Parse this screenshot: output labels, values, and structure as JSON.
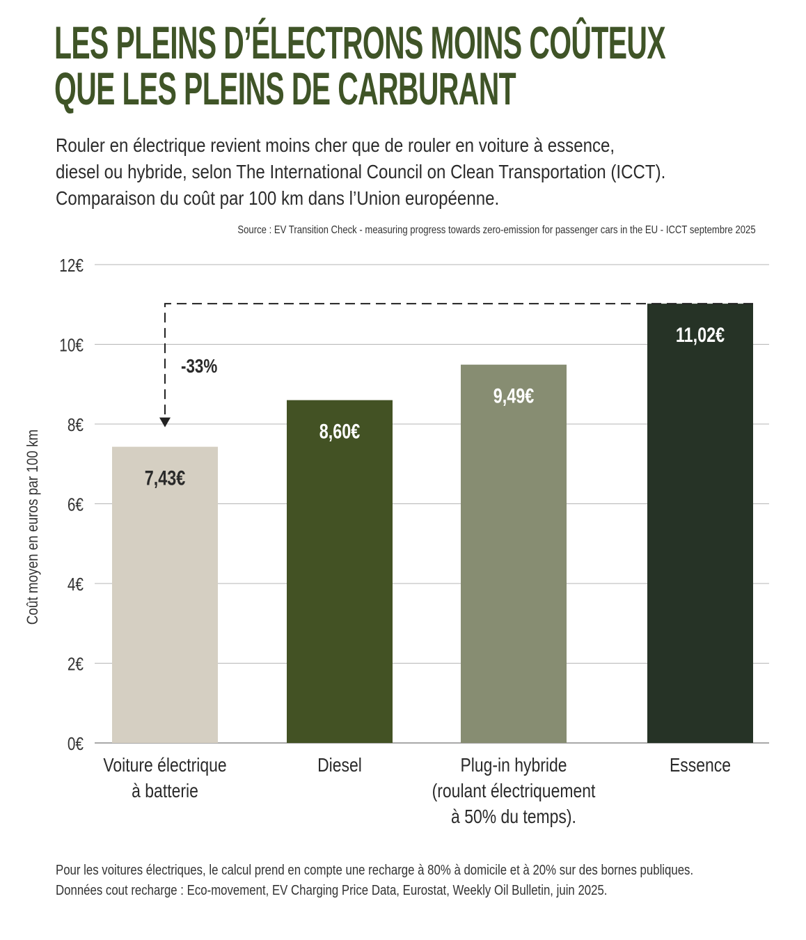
{
  "header": {
    "title_lines": [
      "LES PLEINS D’ÉLECTRONS MOINS COÛTEUX",
      "QUE LES PLEINS DE CARBURANT"
    ],
    "subtitle_lines": [
      "Rouler en électrique revient moins cher que de rouler en voiture à essence,",
      "diesel ou hybride, selon The International Council on Clean Transportation (ICCT).",
      "Comparaison du coût par 100 km dans l’Union européenne."
    ],
    "source": "Source : EV Transition Check - measuring progress towards zero-emission for passenger cars in the EU - ICCT septembre 2025"
  },
  "footer": {
    "lines": [
      "Pour les voitures électriques, le calcul prend en compte une recharge à 80% à domicile et à 20% sur des bornes publiques.",
      "Données cout recharge : Eco-movement, EV Charging Price Data, Eurostat, Weekly Oil Bulletin, juin 2025."
    ]
  },
  "chart_data": {
    "type": "bar",
    "categories": [
      [
        "Voiture électrique",
        "à batterie"
      ],
      [
        "Diesel"
      ],
      [
        "Plug-in hybride",
        "(roulant électriquement",
        "à 50% du temps)."
      ],
      [
        "Essence"
      ]
    ],
    "values": [
      7.43,
      8.6,
      9.49,
      11.02
    ],
    "value_labels": [
      "7,43€",
      "8,60€",
      "9,49€",
      "11,02€"
    ],
    "bar_colors": [
      "#d5cfc2",
      "#435224",
      "#878d72",
      "#263326"
    ],
    "value_label_colors": [
      "#2a2a2a",
      "#ffffff",
      "#ffffff",
      "#ffffff"
    ],
    "ylabel": "Coût moyen en euros par 100 km",
    "ylim": [
      0,
      12
    ],
    "yticks": [
      0,
      2,
      4,
      6,
      8,
      10,
      12
    ],
    "ytick_labels": [
      "0€",
      "2€",
      "4€",
      "6€",
      "8€",
      "10€",
      "12€"
    ],
    "grid": true,
    "annotation": {
      "text": "-33%",
      "from_category": 3,
      "to_category": 0
    }
  }
}
